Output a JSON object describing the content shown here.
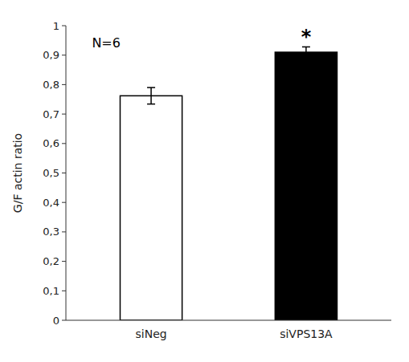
{
  "chart_data": {
    "type": "bar",
    "categories": [
      "siNeg",
      "siVPS13A"
    ],
    "values": [
      0.762,
      0.91
    ],
    "errors": [
      0.028,
      0.018
    ],
    "colors": [
      "#ffffff",
      "#000000"
    ],
    "ylabel": "G/F actin ratio",
    "ylim": [
      0,
      1.0
    ],
    "yticks": [
      0,
      {
        "value": 0.1,
        "label": "0,1"
      },
      {
        "value": 0.2,
        "label": "0,2"
      },
      {
        "value": 0.3,
        "label": "0,3"
      },
      {
        "value": 0.4,
        "label": "0,4"
      },
      {
        "value": 0.5,
        "label": "0,5"
      },
      {
        "value": 0.6,
        "label": "0,6"
      },
      {
        "value": 0.7,
        "label": "0,7"
      },
      {
        "value": 0.8,
        "label": "0,8"
      },
      {
        "value": 0.9,
        "label": "0,9"
      },
      1
    ],
    "grid": false,
    "annotations": [
      {
        "text": "N=6"
      },
      {
        "text": "*",
        "category": "siVPS13A"
      }
    ]
  }
}
